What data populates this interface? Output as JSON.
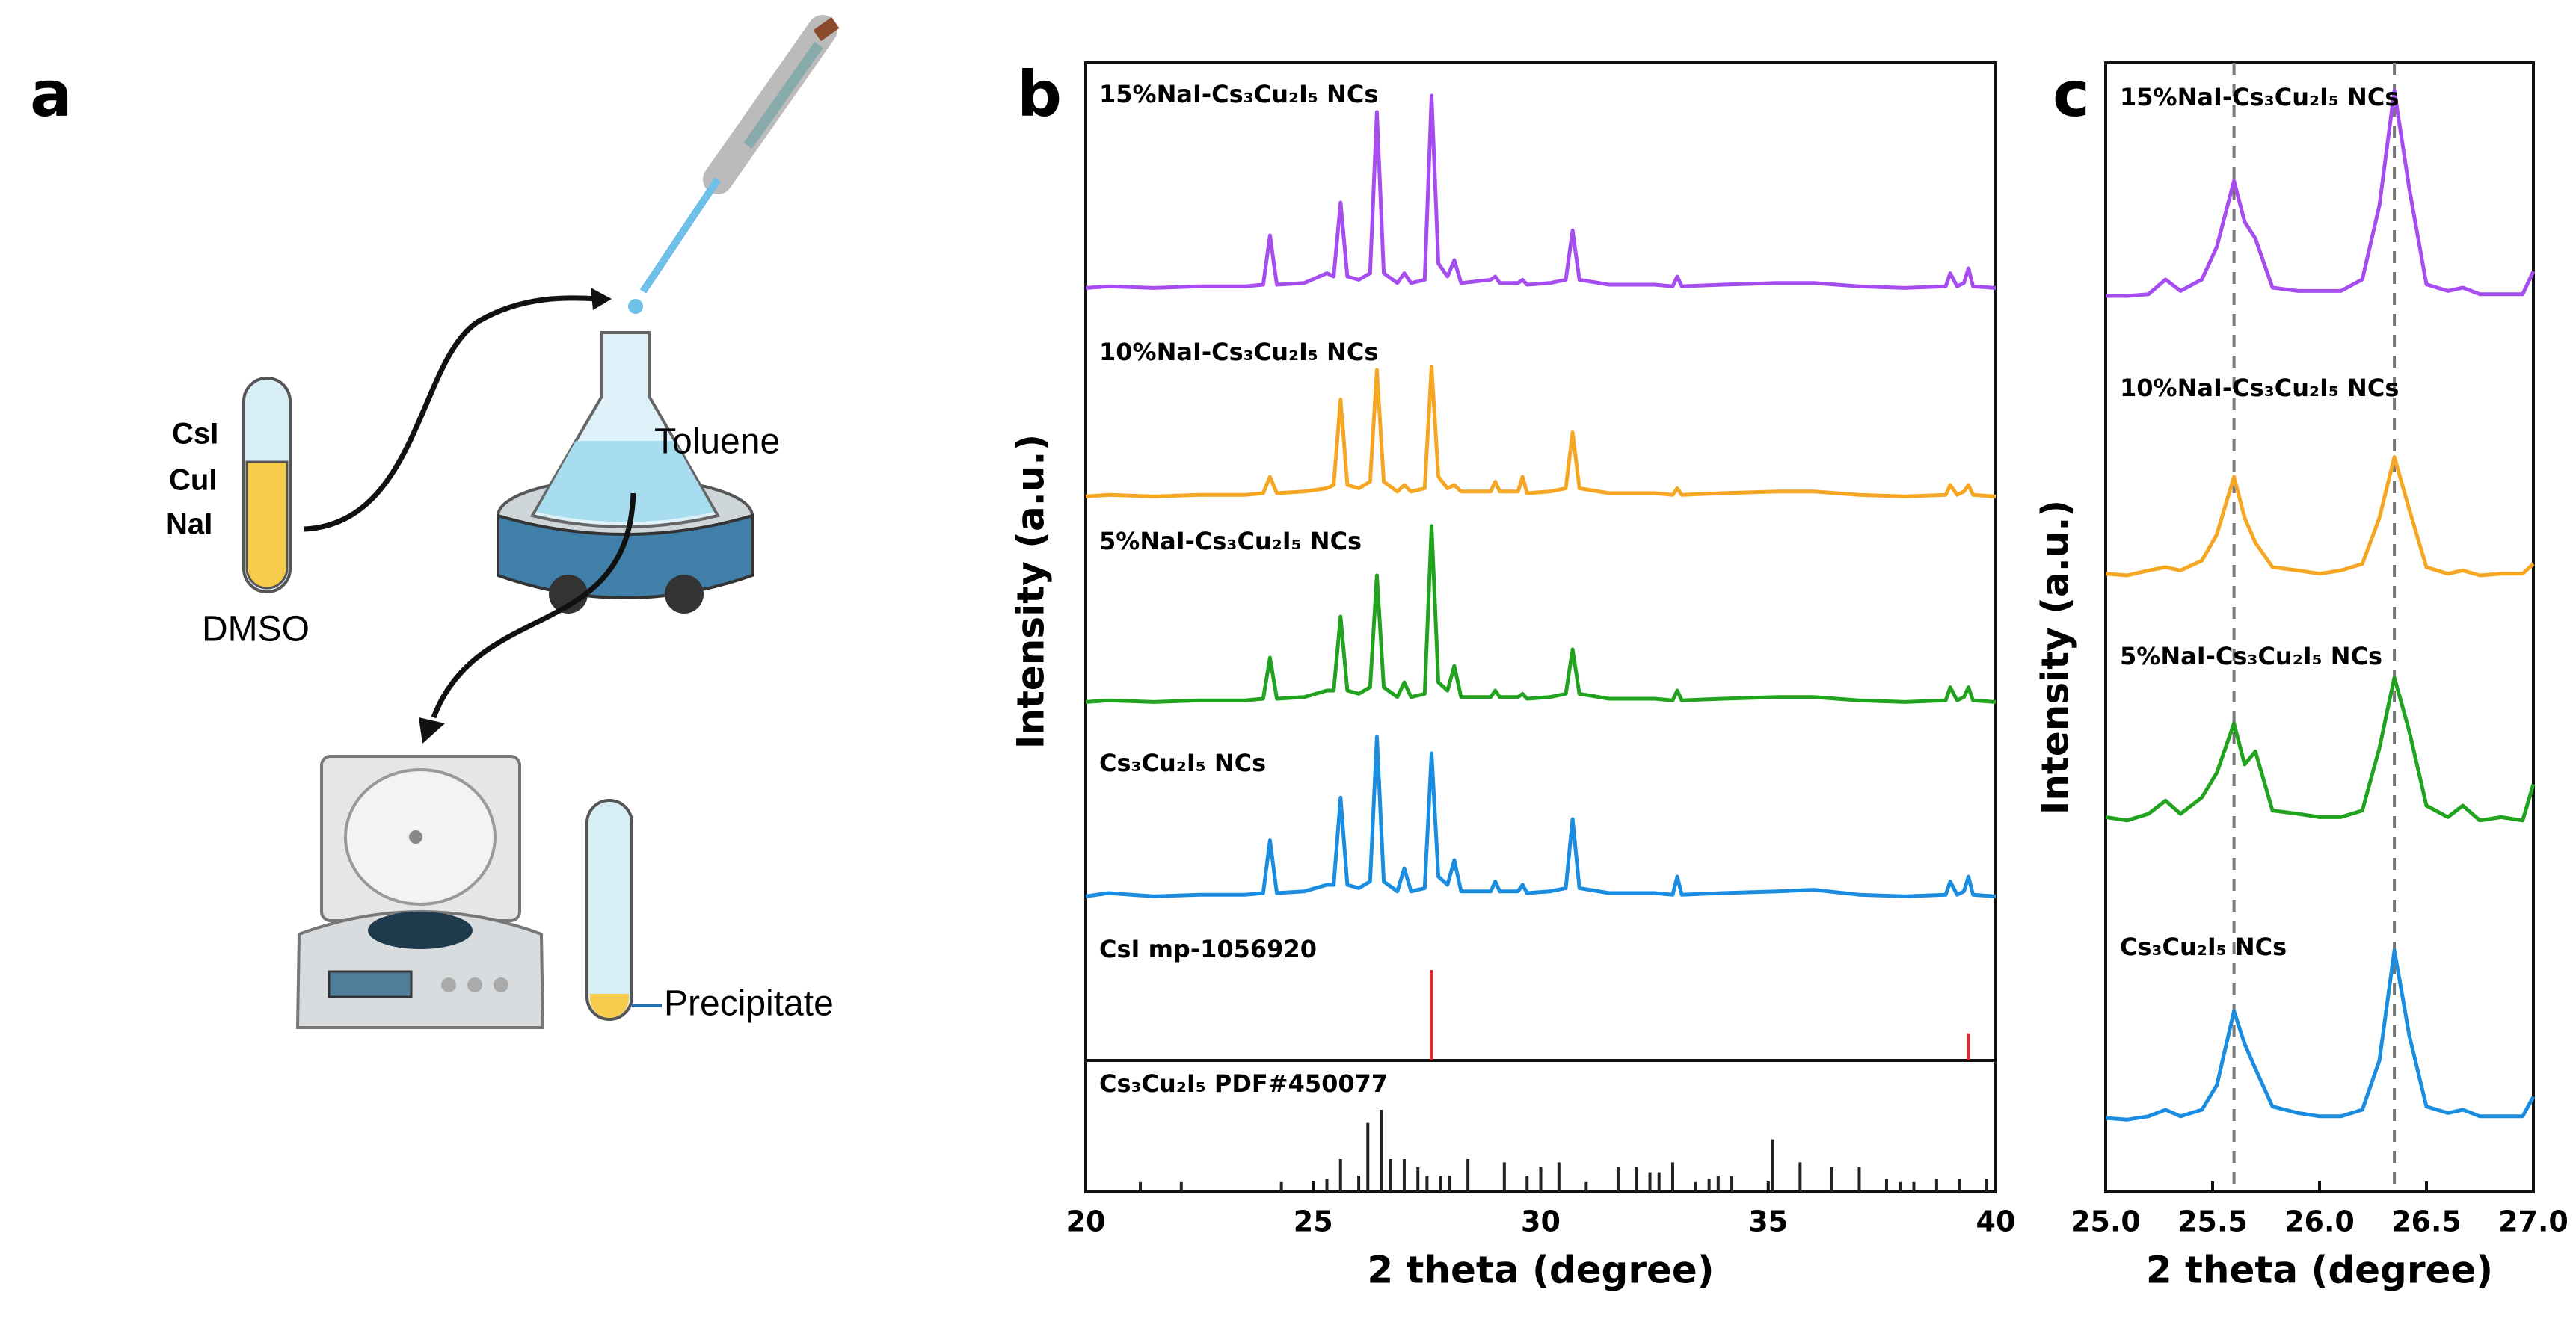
{
  "panel_labels": [
    "a",
    "b",
    "c"
  ],
  "schematic": {
    "reagents": [
      "CsI",
      "CuI",
      "NaI"
    ],
    "solvent": "DMSO",
    "antisolvent": "Toluene",
    "product": "Precipitate"
  },
  "chart_data": [
    {
      "type": "line",
      "x_label": "2 theta (degree)",
      "y_label": "Intensity (a.u.)",
      "xlim": [
        20,
        40
      ],
      "xticks": [
        20,
        25,
        30,
        35,
        40
      ],
      "x": [
        20,
        20.5,
        21.5,
        22.5,
        23.5,
        23.9,
        24.05,
        24.2,
        24.8,
        25.3,
        25.45,
        25.6,
        25.75,
        26.0,
        26.25,
        26.4,
        26.55,
        26.85,
        27.0,
        27.15,
        27.45,
        27.6,
        27.75,
        27.95,
        28.1,
        28.25,
        28.9,
        29.0,
        29.1,
        29.5,
        29.6,
        29.7,
        30.2,
        30.55,
        30.7,
        30.85,
        31.5,
        32.5,
        32.9,
        33.0,
        33.1,
        34.0,
        35.2,
        36.0,
        37.0,
        38.0,
        38.9,
        39.0,
        39.15,
        39.3,
        39.4,
        39.5,
        40
      ],
      "series": [
        {
          "name": "15%NaI-Cs₃Cu₂I₅ NCs",
          "color": "#a64df0",
          "values": [
            3,
            4,
            3,
            4,
            4,
            5,
            35,
            5,
            6,
            12,
            10,
            55,
            10,
            8,
            12,
            110,
            12,
            6,
            12,
            6,
            8,
            120,
            18,
            10,
            20,
            6,
            8,
            10,
            6,
            6,
            8,
            5,
            6,
            8,
            38,
            8,
            5,
            5,
            4,
            10,
            4,
            5,
            6,
            6,
            4,
            3,
            4,
            12,
            4,
            6,
            15,
            4,
            3
          ]
        },
        {
          "name": "10%NaI-Cs₃Cu₂I₅ NCs",
          "color": "#f5a623",
          "values": [
            3,
            4,
            3,
            4,
            4,
            5,
            15,
            5,
            6,
            8,
            10,
            62,
            10,
            8,
            12,
            80,
            12,
            6,
            10,
            6,
            8,
            82,
            15,
            8,
            10,
            6,
            6,
            12,
            6,
            6,
            15,
            5,
            6,
            8,
            42,
            8,
            5,
            5,
            4,
            8,
            4,
            5,
            6,
            6,
            4,
            3,
            4,
            10,
            4,
            6,
            10,
            4,
            3
          ]
        },
        {
          "name": "5%NaI-Cs₃Cu₂I₅ NCs",
          "color": "#22a31f",
          "values": [
            3,
            4,
            3,
            4,
            4,
            5,
            30,
            5,
            6,
            10,
            10,
            55,
            10,
            8,
            12,
            80,
            12,
            6,
            15,
            6,
            8,
            110,
            15,
            10,
            25,
            6,
            6,
            10,
            6,
            6,
            8,
            5,
            6,
            8,
            35,
            8,
            5,
            5,
            4,
            10,
            4,
            5,
            6,
            6,
            4,
            3,
            4,
            12,
            4,
            6,
            12,
            4,
            3
          ]
        },
        {
          "name": "Cs₃Cu₂I₅ NCs",
          "color": "#1a8de0",
          "values": [
            3,
            5,
            3,
            4,
            4,
            5,
            37,
            5,
            6,
            10,
            10,
            63,
            10,
            8,
            12,
            100,
            12,
            6,
            20,
            6,
            8,
            90,
            15,
            10,
            25,
            6,
            6,
            12,
            6,
            6,
            10,
            5,
            6,
            8,
            50,
            8,
            5,
            5,
            4,
            15,
            4,
            5,
            6,
            7,
            4,
            3,
            4,
            12,
            4,
            6,
            15,
            4,
            3
          ]
        }
      ],
      "references": [
        {
          "name": "CsI  mp-1056920",
          "color": "#e8262b",
          "positions": [
            27.6,
            39.4
          ],
          "values": [
            100,
            30
          ]
        },
        {
          "name": "Cs₃Cu₂I₅  PDF#450077",
          "color": "#222222",
          "positions": [
            21.2,
            22.1,
            24.3,
            25.3,
            25.6,
            26.0,
            26.2,
            26.5,
            26.7,
            27.0,
            27.3,
            27.5,
            27.8,
            28.0,
            28.4,
            29.2,
            29.7,
            30.0,
            30.4,
            31.0,
            31.7,
            32.1,
            32.4,
            32.6,
            32.9,
            33.4,
            33.7,
            33.9,
            34.2,
            35.1,
            35.7,
            36.4,
            37.0,
            37.6,
            37.9,
            38.2,
            38.7,
            39.2,
            39.8
          ],
          "values": [
            12,
            12,
            12,
            16,
            40,
            20,
            84,
            100,
            40,
            40,
            30,
            20,
            20,
            20,
            40,
            36,
            20,
            30,
            36,
            12,
            30,
            30,
            24,
            24,
            36,
            12,
            16,
            20,
            20,
            64,
            36,
            30,
            30,
            16,
            12,
            12,
            16,
            16,
            16
          ]
        }
      ]
    },
    {
      "type": "line",
      "x_label": "2 theta (degree)",
      "y_label": "Intensity (a.u.)",
      "xlim": [
        25,
        27
      ],
      "xticks": [
        {
          "value": 25,
          "label": "25.0"
        },
        {
          "value": 25.5,
          "label": "25.5"
        },
        {
          "value": 26,
          "label": "26.0"
        },
        {
          "value": 26.5,
          "label": "26.5"
        },
        {
          "value": 27,
          "label": "27.0"
        }
      ],
      "x": [
        25.0,
        25.1,
        25.2,
        25.28,
        25.35,
        25.45,
        25.52,
        25.6,
        25.65,
        25.7,
        25.78,
        25.9,
        26.0,
        26.1,
        26.2,
        26.28,
        26.35,
        26.42,
        26.5,
        26.6,
        26.67,
        26.75,
        26.85,
        26.95,
        27.0
      ],
      "series": [
        {
          "name": "15%NaI-Cs₃Cu₂I₅ NCs",
          "color": "#a64df0",
          "values": [
            5,
            5,
            6,
            15,
            8,
            15,
            35,
            75,
            50,
            40,
            10,
            8,
            8,
            8,
            15,
            60,
            130,
            70,
            12,
            8,
            10,
            6,
            6,
            6,
            20
          ]
        },
        {
          "name": "10%NaI-Cs₃Cu₂I₅ NCs",
          "color": "#f5a623",
          "values": [
            6,
            5,
            8,
            10,
            8,
            14,
            30,
            65,
            40,
            25,
            10,
            8,
            6,
            8,
            12,
            40,
            77,
            45,
            10,
            6,
            8,
            5,
            6,
            6,
            12
          ]
        },
        {
          "name": "5%NaI-Cs₃Cu₂I₅ NCs",
          "color": "#22a31f",
          "values": [
            8,
            6,
            10,
            18,
            10,
            20,
            35,
            65,
            40,
            48,
            12,
            10,
            8,
            8,
            12,
            50,
            93,
            60,
            15,
            8,
            15,
            6,
            8,
            6,
            28
          ]
        },
        {
          "name": "Cs₃Cu₂I₅ NCs",
          "color": "#1a8de0",
          "values": [
            5,
            4,
            6,
            10,
            6,
            10,
            25,
            70,
            50,
            35,
            12,
            8,
            6,
            6,
            10,
            40,
            107,
            55,
            12,
            8,
            10,
            6,
            6,
            6,
            18
          ]
        }
      ],
      "reference_lines": [
        25.6,
        26.35
      ]
    }
  ]
}
